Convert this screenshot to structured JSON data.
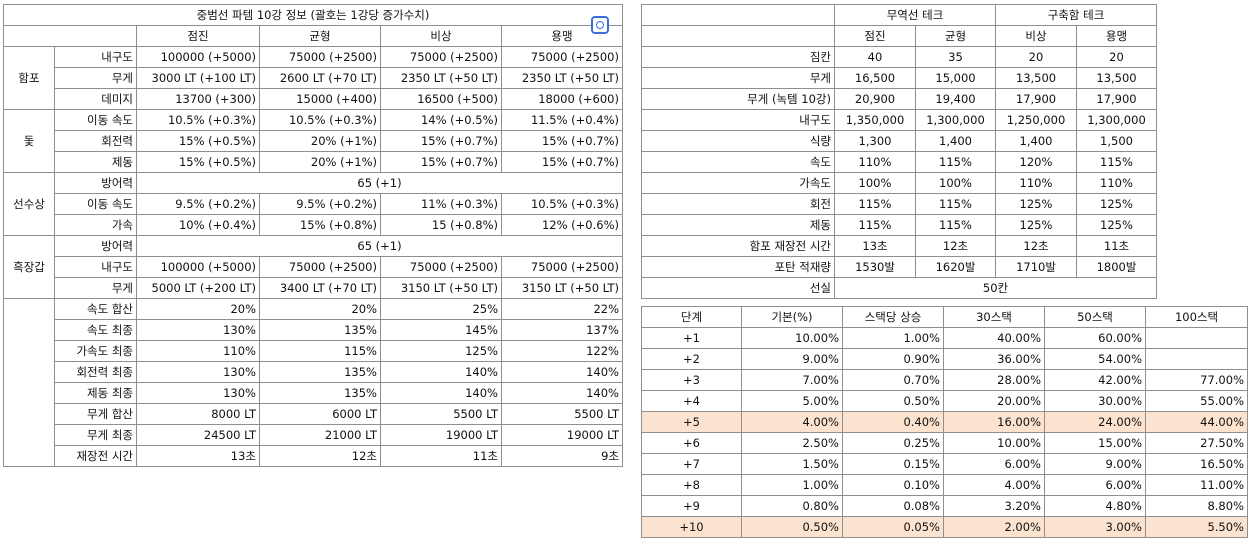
{
  "t1": {
    "title": "중범선 파템 10강 정보 (괄호는 1강당 증가수치)",
    "cols": [
      "점진",
      "균형",
      "비상",
      "용맹"
    ],
    "groups": [
      {
        "name": "함포",
        "rows": [
          {
            "label": "내구도",
            "cells": [
              "100000 (+5000)",
              "75000 (+2500)",
              "75000 (+2500)",
              "75000 (+2500)"
            ]
          },
          {
            "label": "무게",
            "cells": [
              "3000 LT (+100 LT)",
              "2600 LT (+70 LT)",
              "2350 LT (+50 LT)",
              "2350 LT (+50 LT)"
            ]
          },
          {
            "label": "데미지",
            "cells": [
              "13700 (+300)",
              "15000 (+400)",
              "16500 (+500)",
              "18000 (+600)"
            ]
          }
        ]
      },
      {
        "name": "돛",
        "rows": [
          {
            "label": "이동 속도",
            "cells": [
              "10.5% (+0.3%)",
              "10.5% (+0.3%)",
              "14% (+0.5%)",
              "11.5% (+0.4%)"
            ]
          },
          {
            "label": "회전력",
            "cells": [
              "15% (+0.5%)",
              "20% (+1%)",
              "15% (+0.7%)",
              "15% (+0.7%)"
            ]
          },
          {
            "label": "제동",
            "cells": [
              "15% (+0.5%)",
              "20% (+1%)",
              "15% (+0.7%)",
              "15% (+0.7%)"
            ]
          }
        ]
      },
      {
        "name": "선수상",
        "span_label": "방어력",
        "span_value": "65 (+1)",
        "rows": [
          {
            "label": "이동 속도",
            "cells": [
              "9.5% (+0.2%)",
              "9.5% (+0.2%)",
              "11% (+0.3%)",
              "10.5% (+0.3%)"
            ]
          },
          {
            "label": "가속",
            "cells": [
              "10% (+0.4%)",
              "15% (+0.8%)",
              "15 (+0.8%)",
              "12% (+0.6%)"
            ]
          }
        ]
      },
      {
        "name": "흑장갑",
        "span_label": "방어력",
        "span_value": "65 (+1)",
        "rows": [
          {
            "label": "내구도",
            "cells": [
              "100000 (+5000)",
              "75000 (+2500)",
              "75000 (+2500)",
              "75000 (+2500)"
            ]
          },
          {
            "label": "무게",
            "cells": [
              "5000 LT (+200 LT)",
              "3400 LT (+70 LT)",
              "3150 LT (+50 LT)",
              "3150 LT (+50 LT)"
            ]
          }
        ]
      },
      {
        "name": "",
        "rows": [
          {
            "label": "속도 합산",
            "cells": [
              "20%",
              "20%",
              "25%",
              "22%"
            ]
          },
          {
            "label": "속도 최종",
            "cells": [
              "130%",
              "135%",
              "145%",
              "137%"
            ]
          },
          {
            "label": "가속도 최종",
            "cells": [
              "110%",
              "115%",
              "125%",
              "122%"
            ]
          },
          {
            "label": "회전력 최종",
            "cells": [
              "130%",
              "135%",
              "140%",
              "140%"
            ]
          },
          {
            "label": "제동 최종",
            "cells": [
              "130%",
              "135%",
              "140%",
              "140%"
            ]
          },
          {
            "label": "무게 합산",
            "cells": [
              "8000 LT",
              "6000 LT",
              "5500 LT",
              "5500 LT"
            ]
          },
          {
            "label": "무게 최종",
            "cells": [
              "24500 LT",
              "21000 LT",
              "19000 LT",
              "19000 LT"
            ]
          },
          {
            "label": "재장전 시간",
            "cells": [
              "13초",
              "12초",
              "11초",
              "9초"
            ]
          }
        ]
      }
    ]
  },
  "t2": {
    "group1": "무역선 테크",
    "group2": "구축함 테크",
    "cols": [
      "점진",
      "균형",
      "비상",
      "용맹"
    ],
    "rows": [
      {
        "label": "짐칸",
        "cells": [
          "40",
          "35",
          "20",
          "20"
        ]
      },
      {
        "label": "무게",
        "cells": [
          "16,500",
          "15,000",
          "13,500",
          "13,500"
        ]
      },
      {
        "label": "무게 (녹템 10강)",
        "cells": [
          "20,900",
          "19,400",
          "17,900",
          "17,900"
        ]
      },
      {
        "label": "내구도",
        "cells": [
          "1,350,000",
          "1,300,000",
          "1,250,000",
          "1,300,000"
        ]
      },
      {
        "label": "식량",
        "cells": [
          "1,300",
          "1,400",
          "1,400",
          "1,500"
        ]
      },
      {
        "label": "속도",
        "cells": [
          "110%",
          "115%",
          "120%",
          "115%"
        ]
      },
      {
        "label": "가속도",
        "cells": [
          "100%",
          "100%",
          "110%",
          "110%"
        ]
      },
      {
        "label": "회전",
        "cells": [
          "115%",
          "115%",
          "125%",
          "125%"
        ]
      },
      {
        "label": "제동",
        "cells": [
          "115%",
          "115%",
          "125%",
          "125%"
        ]
      },
      {
        "label": "함포 재장전 시간",
        "cells": [
          "13초",
          "12초",
          "12초",
          "11초"
        ]
      },
      {
        "label": "포탄 적재량",
        "cells": [
          "1530발",
          "1620발",
          "1710발",
          "1800발"
        ]
      }
    ],
    "last_label": "선실",
    "last_value": "50칸"
  },
  "t3": {
    "headers": [
      "단계",
      "기본(%)",
      "스택당 상승",
      "30스택",
      "50스택",
      "100스택"
    ],
    "rows": [
      {
        "cells": [
          "+1",
          "10.00%",
          "1.00%",
          "40.00%",
          "60.00%",
          ""
        ],
        "hl": false
      },
      {
        "cells": [
          "+2",
          "9.00%",
          "0.90%",
          "36.00%",
          "54.00%",
          ""
        ],
        "hl": false
      },
      {
        "cells": [
          "+3",
          "7.00%",
          "0.70%",
          "28.00%",
          "42.00%",
          "77.00%"
        ],
        "hl": false
      },
      {
        "cells": [
          "+4",
          "5.00%",
          "0.50%",
          "20.00%",
          "30.00%",
          "55.00%"
        ],
        "hl": false
      },
      {
        "cells": [
          "+5",
          "4.00%",
          "0.40%",
          "16.00%",
          "24.00%",
          "44.00%"
        ],
        "hl": true
      },
      {
        "cells": [
          "+6",
          "2.50%",
          "0.25%",
          "10.00%",
          "15.00%",
          "27.50%"
        ],
        "hl": false
      },
      {
        "cells": [
          "+7",
          "1.50%",
          "0.15%",
          "6.00%",
          "9.00%",
          "16.50%"
        ],
        "hl": false
      },
      {
        "cells": [
          "+8",
          "1.00%",
          "0.10%",
          "4.00%",
          "6.00%",
          "11.00%"
        ],
        "hl": false
      },
      {
        "cells": [
          "+9",
          "0.80%",
          "0.08%",
          "3.20%",
          "4.80%",
          "8.80%"
        ],
        "hl": false
      },
      {
        "cells": [
          "+10",
          "0.50%",
          "0.05%",
          "2.00%",
          "3.00%",
          "5.50%"
        ],
        "hl": true
      }
    ],
    "highlight_color": "#fbe3cf"
  },
  "lens_icon": "image-search-icon"
}
